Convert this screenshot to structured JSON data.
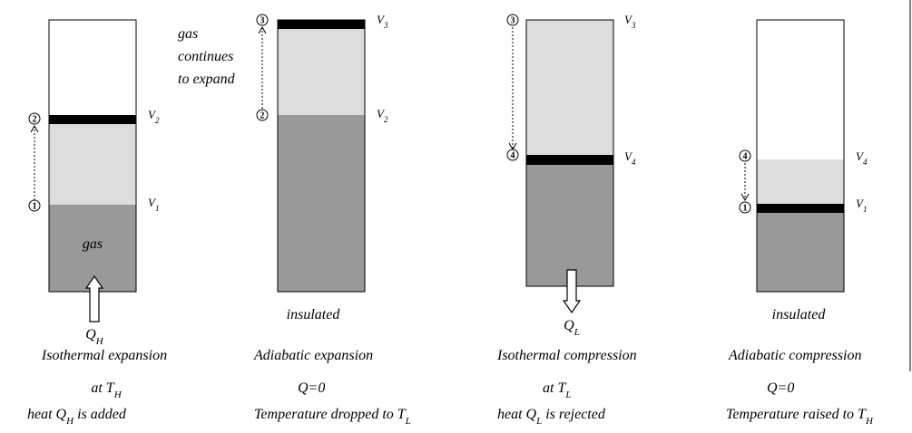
{
  "panels": [
    {
      "markers": [
        "2",
        "1"
      ],
      "volume_labels": [
        [
          "V",
          "2"
        ],
        [
          "V",
          "1"
        ]
      ],
      "gas_label": "gas",
      "heat_label": [
        "Q",
        "H"
      ],
      "caption": [
        [
          "Isothermal expansion"
        ],
        [
          "at T",
          "H"
        ],
        [
          "heat Q",
          "H",
          "  is added"
        ]
      ]
    },
    {
      "markers": [
        "3",
        "2"
      ],
      "volume_labels": [
        [
          "V",
          "3"
        ],
        [
          "V",
          "2"
        ]
      ],
      "note": [
        "gas",
        "continues",
        "to expand"
      ],
      "insulation_label": "insulated",
      "caption": [
        [
          "Adiabatic expansion"
        ],
        [
          "Q=0"
        ],
        [
          "Temperature dropped to T",
          "L"
        ]
      ]
    },
    {
      "markers": [
        "3",
        "4"
      ],
      "volume_labels": [
        [
          "V",
          "3"
        ],
        [
          "V",
          "4"
        ]
      ],
      "heat_label": [
        "Q",
        "L"
      ],
      "caption": [
        [
          "Isothermal compression"
        ],
        [
          "at T",
          "L"
        ],
        [
          "heat Q",
          "L",
          "  is rejected"
        ]
      ]
    },
    {
      "markers": [
        "4",
        "1"
      ],
      "volume_labels": [
        [
          "V",
          "4"
        ],
        [
          "V",
          "1"
        ]
      ],
      "insulation_label": "insulated",
      "caption": [
        [
          "Adiabatic compression"
        ],
        [
          "Q=0"
        ],
        [
          "Temperature raised to T",
          "H"
        ]
      ]
    }
  ]
}
